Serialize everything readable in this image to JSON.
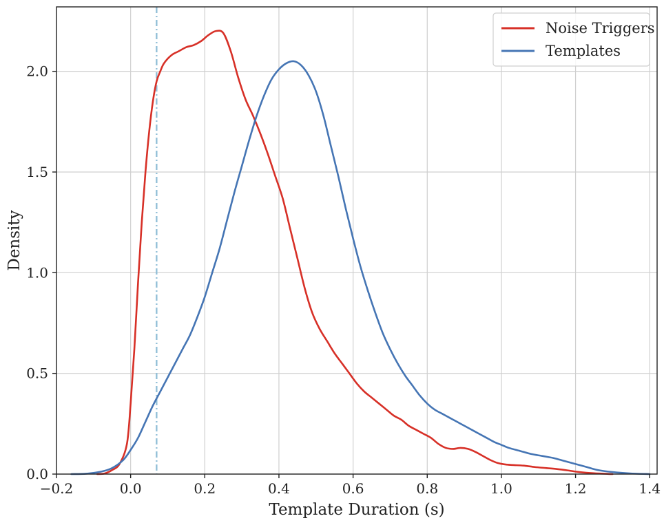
{
  "chart_data": {
    "type": "line",
    "xlabel": "Template Duration (s)",
    "ylabel": "Density",
    "xlim": [
      -0.2,
      1.42
    ],
    "ylim": [
      0.0,
      2.32
    ],
    "x_ticks": [
      -0.2,
      0.0,
      0.2,
      0.4,
      0.6,
      0.8,
      1.0,
      1.2,
      1.4
    ],
    "x_tick_labels": [
      "−0.2",
      "0.0",
      "0.2",
      "0.4",
      "0.6",
      "0.8",
      "1.0",
      "1.2",
      "1.4"
    ],
    "y_ticks": [
      0.0,
      0.5,
      1.0,
      1.5,
      2.0
    ],
    "y_tick_labels": [
      "0.0",
      "0.5",
      "1.0",
      "1.5",
      "2.0"
    ],
    "grid": true,
    "legend_position": "top-right",
    "reference_line": {
      "x": 0.07,
      "style": "dash-dot",
      "color": "#92bfd8"
    },
    "series": [
      {
        "name": "Noise Triggers",
        "color": "#d73027",
        "points": [
          [
            -0.09,
            0.0
          ],
          [
            -0.07,
            0.003
          ],
          [
            -0.05,
            0.02
          ],
          [
            -0.03,
            0.05
          ],
          [
            -0.01,
            0.15
          ],
          [
            0.0,
            0.35
          ],
          [
            0.01,
            0.62
          ],
          [
            0.02,
            0.95
          ],
          [
            0.03,
            1.25
          ],
          [
            0.04,
            1.5
          ],
          [
            0.05,
            1.7
          ],
          [
            0.06,
            1.85
          ],
          [
            0.07,
            1.95
          ],
          [
            0.08,
            2.0
          ],
          [
            0.09,
            2.04
          ],
          [
            0.11,
            2.08
          ],
          [
            0.13,
            2.1
          ],
          [
            0.15,
            2.12
          ],
          [
            0.17,
            2.13
          ],
          [
            0.19,
            2.15
          ],
          [
            0.21,
            2.18
          ],
          [
            0.23,
            2.2
          ],
          [
            0.25,
            2.19
          ],
          [
            0.27,
            2.1
          ],
          [
            0.29,
            1.97
          ],
          [
            0.31,
            1.86
          ],
          [
            0.33,
            1.78
          ],
          [
            0.35,
            1.69
          ],
          [
            0.37,
            1.59
          ],
          [
            0.39,
            1.48
          ],
          [
            0.41,
            1.37
          ],
          [
            0.43,
            1.22
          ],
          [
            0.45,
            1.07
          ],
          [
            0.47,
            0.92
          ],
          [
            0.49,
            0.8
          ],
          [
            0.51,
            0.72
          ],
          [
            0.53,
            0.66
          ],
          [
            0.55,
            0.6
          ],
          [
            0.57,
            0.55
          ],
          [
            0.59,
            0.5
          ],
          [
            0.61,
            0.45
          ],
          [
            0.63,
            0.41
          ],
          [
            0.65,
            0.38
          ],
          [
            0.67,
            0.35
          ],
          [
            0.69,
            0.32
          ],
          [
            0.71,
            0.29
          ],
          [
            0.73,
            0.27
          ],
          [
            0.75,
            0.24
          ],
          [
            0.77,
            0.22
          ],
          [
            0.79,
            0.2
          ],
          [
            0.81,
            0.18
          ],
          [
            0.83,
            0.15
          ],
          [
            0.85,
            0.13
          ],
          [
            0.87,
            0.125
          ],
          [
            0.89,
            0.13
          ],
          [
            0.91,
            0.125
          ],
          [
            0.93,
            0.11
          ],
          [
            0.95,
            0.09
          ],
          [
            0.97,
            0.07
          ],
          [
            0.99,
            0.055
          ],
          [
            1.01,
            0.048
          ],
          [
            1.03,
            0.045
          ],
          [
            1.06,
            0.042
          ],
          [
            1.09,
            0.035
          ],
          [
            1.12,
            0.03
          ],
          [
            1.15,
            0.025
          ],
          [
            1.18,
            0.018
          ],
          [
            1.21,
            0.01
          ],
          [
            1.25,
            0.004
          ],
          [
            1.3,
            0.0
          ]
        ]
      },
      {
        "name": "Templates",
        "color": "#4575b4",
        "points": [
          [
            -0.16,
            0.0
          ],
          [
            -0.12,
            0.002
          ],
          [
            -0.08,
            0.012
          ],
          [
            -0.05,
            0.03
          ],
          [
            -0.02,
            0.07
          ],
          [
            0.0,
            0.12
          ],
          [
            0.02,
            0.18
          ],
          [
            0.04,
            0.26
          ],
          [
            0.06,
            0.34
          ],
          [
            0.08,
            0.41
          ],
          [
            0.1,
            0.48
          ],
          [
            0.12,
            0.55
          ],
          [
            0.14,
            0.62
          ],
          [
            0.16,
            0.69
          ],
          [
            0.18,
            0.78
          ],
          [
            0.2,
            0.88
          ],
          [
            0.22,
            1.0
          ],
          [
            0.24,
            1.12
          ],
          [
            0.26,
            1.26
          ],
          [
            0.28,
            1.4
          ],
          [
            0.3,
            1.53
          ],
          [
            0.32,
            1.66
          ],
          [
            0.34,
            1.78
          ],
          [
            0.36,
            1.88
          ],
          [
            0.38,
            1.96
          ],
          [
            0.4,
            2.01
          ],
          [
            0.42,
            2.04
          ],
          [
            0.44,
            2.05
          ],
          [
            0.46,
            2.03
          ],
          [
            0.48,
            1.98
          ],
          [
            0.5,
            1.9
          ],
          [
            0.52,
            1.78
          ],
          [
            0.54,
            1.63
          ],
          [
            0.56,
            1.48
          ],
          [
            0.58,
            1.32
          ],
          [
            0.6,
            1.17
          ],
          [
            0.62,
            1.03
          ],
          [
            0.64,
            0.91
          ],
          [
            0.66,
            0.8
          ],
          [
            0.68,
            0.7
          ],
          [
            0.7,
            0.62
          ],
          [
            0.72,
            0.55
          ],
          [
            0.74,
            0.49
          ],
          [
            0.76,
            0.44
          ],
          [
            0.78,
            0.39
          ],
          [
            0.8,
            0.35
          ],
          [
            0.82,
            0.32
          ],
          [
            0.84,
            0.3
          ],
          [
            0.86,
            0.28
          ],
          [
            0.88,
            0.26
          ],
          [
            0.9,
            0.24
          ],
          [
            0.92,
            0.22
          ],
          [
            0.94,
            0.2
          ],
          [
            0.96,
            0.18
          ],
          [
            0.98,
            0.16
          ],
          [
            1.0,
            0.145
          ],
          [
            1.02,
            0.13
          ],
          [
            1.05,
            0.115
          ],
          [
            1.08,
            0.1
          ],
          [
            1.11,
            0.09
          ],
          [
            1.14,
            0.08
          ],
          [
            1.17,
            0.065
          ],
          [
            1.2,
            0.05
          ],
          [
            1.23,
            0.035
          ],
          [
            1.26,
            0.02
          ],
          [
            1.3,
            0.01
          ],
          [
            1.35,
            0.003
          ],
          [
            1.4,
            0.0
          ]
        ]
      }
    ]
  }
}
